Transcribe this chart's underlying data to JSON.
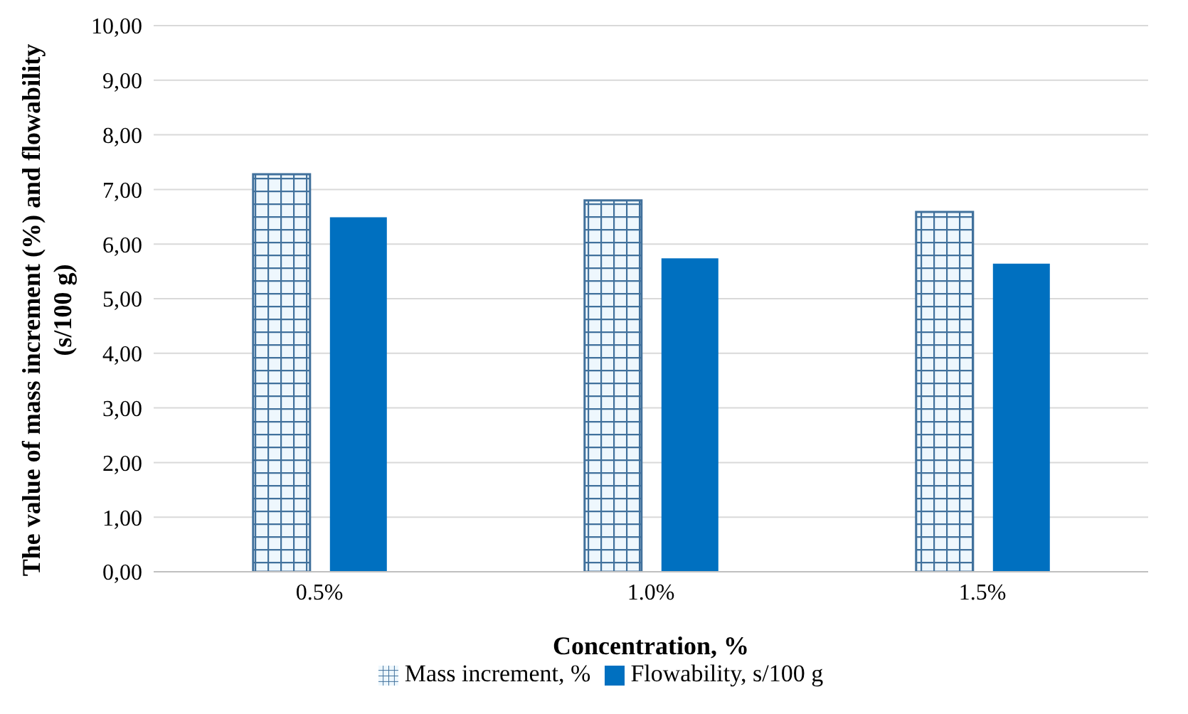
{
  "chart_data": {
    "type": "bar",
    "xlabel": "Concentration, %",
    "ylabel": "The value of mass increment (%) and flowability (s/100 g)",
    "categories": [
      "0.5%",
      "1.0%",
      "1.5%"
    ],
    "series": [
      {
        "name": "Mass increment, %",
        "color": "#41719c",
        "values": [
          7.28,
          6.8,
          6.59
        ]
      },
      {
        "name": "Flowability, s/100 g",
        "color": "#0070c0",
        "values": [
          6.49,
          5.74,
          5.64
        ]
      }
    ],
    "ylim": [
      0,
      10
    ],
    "yticks": [
      {
        "value": 0,
        "label": "0,00"
      },
      {
        "value": 1,
        "label": "1,00"
      },
      {
        "value": 2,
        "label": "2,00"
      },
      {
        "value": 3,
        "label": "3,00"
      },
      {
        "value": 4,
        "label": "4,00"
      },
      {
        "value": 5,
        "label": "5,00"
      },
      {
        "value": 6,
        "label": "6,00"
      },
      {
        "value": 7,
        "label": "7,00"
      },
      {
        "value": 8,
        "label": "8,00"
      },
      {
        "value": 9,
        "label": "9,00"
      },
      {
        "value": 10,
        "label": "10,00"
      }
    ],
    "grid": "y",
    "legend": "bottom"
  }
}
